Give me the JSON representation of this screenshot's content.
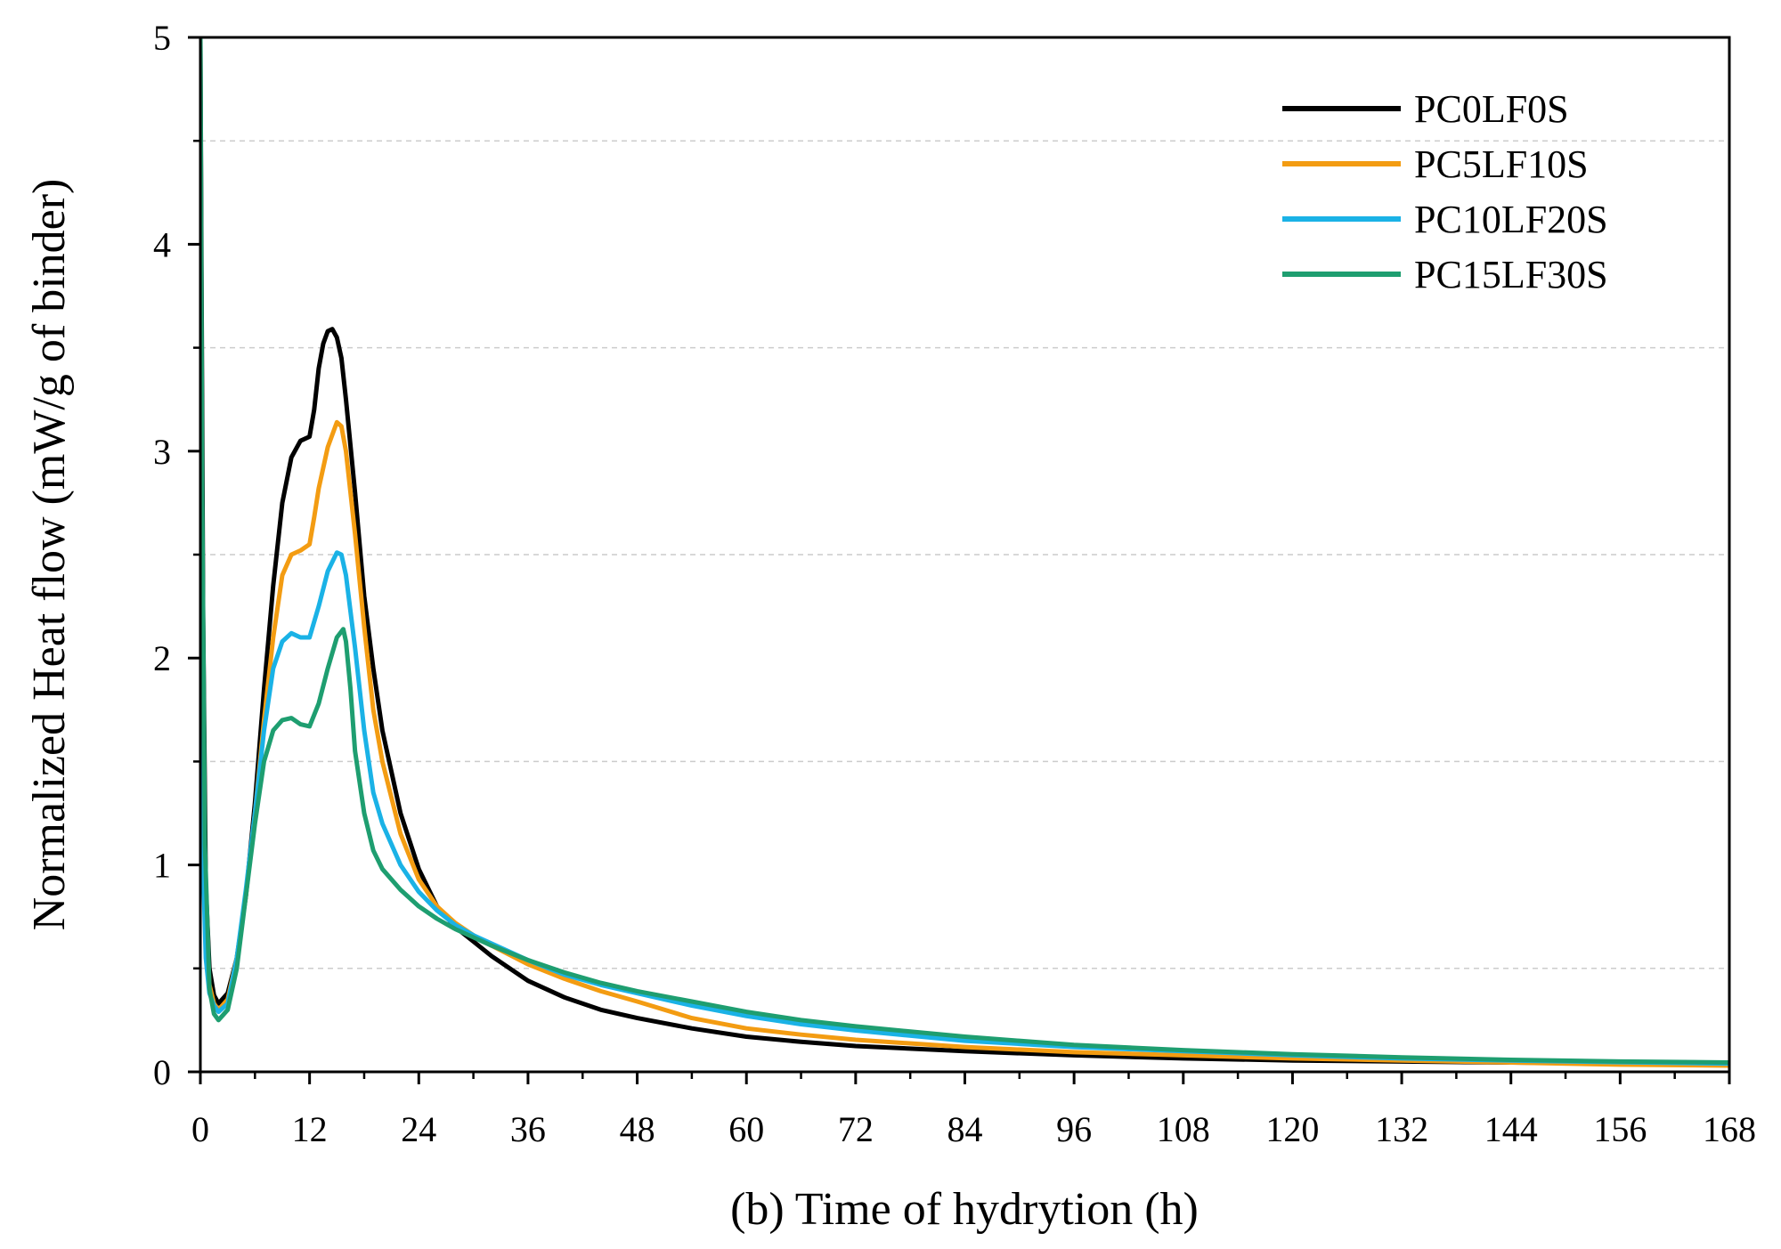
{
  "chart_data": {
    "type": "line",
    "title": "",
    "xlabel": "(b) Time of hydrytion (h)",
    "ylabel": "Normalized Heat flow (mW/g of binder)",
    "xlim": [
      0,
      168
    ],
    "ylim": [
      0,
      5
    ],
    "xticks": [
      "0",
      "12",
      "24",
      "36",
      "48",
      "60",
      "72",
      "84",
      "96",
      "108",
      "120",
      "132",
      "144",
      "156",
      "168"
    ],
    "yticks": [
      "0",
      "1",
      "2",
      "3",
      "4",
      "5"
    ],
    "grid": "horizontal dashed at half units",
    "legend_position": "top-right",
    "series": [
      {
        "name": "PC0LF0S",
        "color": "#000000",
        "points": [
          [
            0,
            5
          ],
          [
            0.3,
            2.2
          ],
          [
            0.6,
            0.9
          ],
          [
            1,
            0.5
          ],
          [
            1.5,
            0.37
          ],
          [
            2,
            0.33
          ],
          [
            3,
            0.38
          ],
          [
            4,
            0.55
          ],
          [
            5,
            0.85
          ],
          [
            6,
            1.3
          ],
          [
            7,
            1.85
          ],
          [
            8,
            2.35
          ],
          [
            9,
            2.75
          ],
          [
            10,
            2.97
          ],
          [
            11,
            3.05
          ],
          [
            12,
            3.07
          ],
          [
            12.5,
            3.2
          ],
          [
            13,
            3.4
          ],
          [
            13.5,
            3.52
          ],
          [
            14,
            3.58
          ],
          [
            14.5,
            3.59
          ],
          [
            15,
            3.55
          ],
          [
            15.5,
            3.45
          ],
          [
            16,
            3.25
          ],
          [
            17,
            2.8
          ],
          [
            18,
            2.3
          ],
          [
            19,
            1.95
          ],
          [
            20,
            1.65
          ],
          [
            22,
            1.25
          ],
          [
            24,
            0.98
          ],
          [
            26,
            0.8
          ],
          [
            28,
            0.7
          ],
          [
            30,
            0.63
          ],
          [
            32,
            0.56
          ],
          [
            36,
            0.44
          ],
          [
            40,
            0.36
          ],
          [
            44,
            0.3
          ],
          [
            48,
            0.26
          ],
          [
            54,
            0.21
          ],
          [
            60,
            0.17
          ],
          [
            66,
            0.145
          ],
          [
            72,
            0.125
          ],
          [
            84,
            0.1
          ],
          [
            96,
            0.08
          ],
          [
            108,
            0.065
          ],
          [
            120,
            0.055
          ],
          [
            132,
            0.05
          ],
          [
            144,
            0.045
          ],
          [
            156,
            0.042
          ],
          [
            168,
            0.04
          ]
        ]
      },
      {
        "name": "PC5LF10S",
        "color": "#F39C12",
        "points": [
          [
            0,
            3.3
          ],
          [
            0.3,
            1.6
          ],
          [
            0.6,
            0.75
          ],
          [
            1,
            0.42
          ],
          [
            1.5,
            0.33
          ],
          [
            2,
            0.3
          ],
          [
            3,
            0.35
          ],
          [
            4,
            0.55
          ],
          [
            5,
            0.85
          ],
          [
            6,
            1.25
          ],
          [
            7,
            1.7
          ],
          [
            8,
            2.1
          ],
          [
            9,
            2.4
          ],
          [
            10,
            2.5
          ],
          [
            11,
            2.52
          ],
          [
            12,
            2.55
          ],
          [
            12.5,
            2.68
          ],
          [
            13,
            2.82
          ],
          [
            14,
            3.02
          ],
          [
            15,
            3.14
          ],
          [
            15.5,
            3.12
          ],
          [
            16,
            3.0
          ],
          [
            17,
            2.6
          ],
          [
            18,
            2.15
          ],
          [
            19,
            1.75
          ],
          [
            20,
            1.5
          ],
          [
            22,
            1.15
          ],
          [
            24,
            0.93
          ],
          [
            26,
            0.8
          ],
          [
            28,
            0.72
          ],
          [
            30,
            0.66
          ],
          [
            32,
            0.61
          ],
          [
            36,
            0.52
          ],
          [
            40,
            0.45
          ],
          [
            44,
            0.39
          ],
          [
            48,
            0.34
          ],
          [
            54,
            0.26
          ],
          [
            60,
            0.21
          ],
          [
            66,
            0.18
          ],
          [
            72,
            0.155
          ],
          [
            84,
            0.12
          ],
          [
            96,
            0.095
          ],
          [
            108,
            0.08
          ],
          [
            120,
            0.065
          ],
          [
            132,
            0.055
          ],
          [
            144,
            0.045
          ],
          [
            156,
            0.035
          ],
          [
            168,
            0.03
          ]
        ]
      },
      {
        "name": "PC10LF20S",
        "color": "#1AB2E6",
        "points": [
          [
            0,
            2.0
          ],
          [
            0.3,
            1.0
          ],
          [
            0.6,
            0.55
          ],
          [
            1,
            0.38
          ],
          [
            1.5,
            0.32
          ],
          [
            2,
            0.29
          ],
          [
            3,
            0.33
          ],
          [
            4,
            0.55
          ],
          [
            5,
            0.88
          ],
          [
            6,
            1.25
          ],
          [
            7,
            1.65
          ],
          [
            8,
            1.95
          ],
          [
            9,
            2.08
          ],
          [
            10,
            2.12
          ],
          [
            11,
            2.1
          ],
          [
            12,
            2.1
          ],
          [
            13,
            2.25
          ],
          [
            14,
            2.42
          ],
          [
            15,
            2.51
          ],
          [
            15.5,
            2.5
          ],
          [
            16,
            2.4
          ],
          [
            17,
            2.05
          ],
          [
            18,
            1.65
          ],
          [
            19,
            1.35
          ],
          [
            20,
            1.2
          ],
          [
            22,
            1.0
          ],
          [
            24,
            0.87
          ],
          [
            26,
            0.78
          ],
          [
            28,
            0.71
          ],
          [
            30,
            0.66
          ],
          [
            32,
            0.62
          ],
          [
            36,
            0.54
          ],
          [
            40,
            0.47
          ],
          [
            44,
            0.42
          ],
          [
            48,
            0.38
          ],
          [
            54,
            0.32
          ],
          [
            60,
            0.27
          ],
          [
            66,
            0.23
          ],
          [
            72,
            0.2
          ],
          [
            84,
            0.15
          ],
          [
            96,
            0.12
          ],
          [
            108,
            0.1
          ],
          [
            120,
            0.08
          ],
          [
            132,
            0.065
          ],
          [
            144,
            0.055
          ],
          [
            156,
            0.047
          ],
          [
            168,
            0.04
          ]
        ]
      },
      {
        "name": "PC15LF30S",
        "color": "#1E9E70",
        "points": [
          [
            0,
            5
          ],
          [
            0.2,
            2.8
          ],
          [
            0.5,
            1.1
          ],
          [
            1,
            0.4
          ],
          [
            1.5,
            0.28
          ],
          [
            2,
            0.25
          ],
          [
            3,
            0.3
          ],
          [
            4,
            0.5
          ],
          [
            5,
            0.85
          ],
          [
            6,
            1.2
          ],
          [
            7,
            1.5
          ],
          [
            8,
            1.65
          ],
          [
            9,
            1.7
          ],
          [
            10,
            1.71
          ],
          [
            11,
            1.68
          ],
          [
            12,
            1.67
          ],
          [
            13,
            1.78
          ],
          [
            14,
            1.95
          ],
          [
            15,
            2.1
          ],
          [
            15.7,
            2.14
          ],
          [
            16,
            2.08
          ],
          [
            16.5,
            1.85
          ],
          [
            17,
            1.55
          ],
          [
            18,
            1.25
          ],
          [
            19,
            1.07
          ],
          [
            20,
            0.98
          ],
          [
            22,
            0.88
          ],
          [
            24,
            0.8
          ],
          [
            26,
            0.74
          ],
          [
            28,
            0.69
          ],
          [
            30,
            0.65
          ],
          [
            32,
            0.61
          ],
          [
            36,
            0.54
          ],
          [
            40,
            0.48
          ],
          [
            44,
            0.43
          ],
          [
            48,
            0.39
          ],
          [
            54,
            0.34
          ],
          [
            60,
            0.29
          ],
          [
            66,
            0.25
          ],
          [
            72,
            0.22
          ],
          [
            84,
            0.17
          ],
          [
            96,
            0.13
          ],
          [
            108,
            0.105
          ],
          [
            120,
            0.085
          ],
          [
            132,
            0.07
          ],
          [
            144,
            0.058
          ],
          [
            156,
            0.05
          ],
          [
            168,
            0.045
          ]
        ]
      }
    ]
  }
}
